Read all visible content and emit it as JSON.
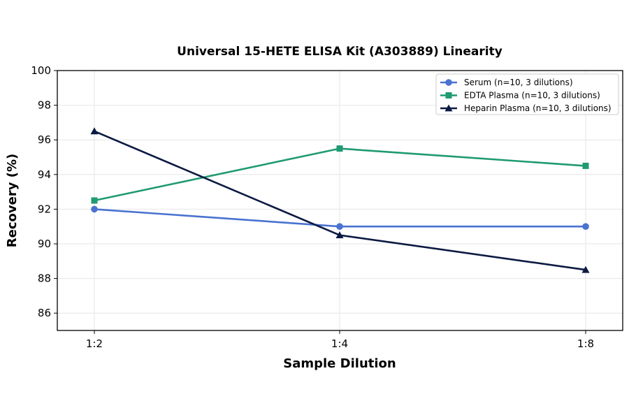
{
  "chart_data": {
    "type": "line",
    "title": "Universal 15-HETE ELISA Kit (A303889) Linearity",
    "xlabel": "Sample Dilution",
    "ylabel": "Recovery (%)",
    "categories": [
      "1:2",
      "1:4",
      "1:8"
    ],
    "ylim": [
      85,
      100
    ],
    "yticks": [
      86,
      88,
      90,
      92,
      94,
      96,
      98,
      100
    ],
    "grid": true,
    "legend_position": "top-right",
    "series": [
      {
        "name": "Serum (n=10, 3 dilutions)",
        "values": [
          92.0,
          91.0,
          91.0
        ],
        "color": "#4a72d0",
        "marker": "circle"
      },
      {
        "name": "EDTA Plasma (n=10, 3 dilutions)",
        "values": [
          92.5,
          95.5,
          94.5
        ],
        "color": "#1f9a72",
        "marker": "square"
      },
      {
        "name": "Heparin Plasma (n=10, 3 dilutions)",
        "values": [
          96.5,
          90.5,
          88.5
        ],
        "color": "#0b1a42",
        "marker": "triangle"
      }
    ]
  }
}
